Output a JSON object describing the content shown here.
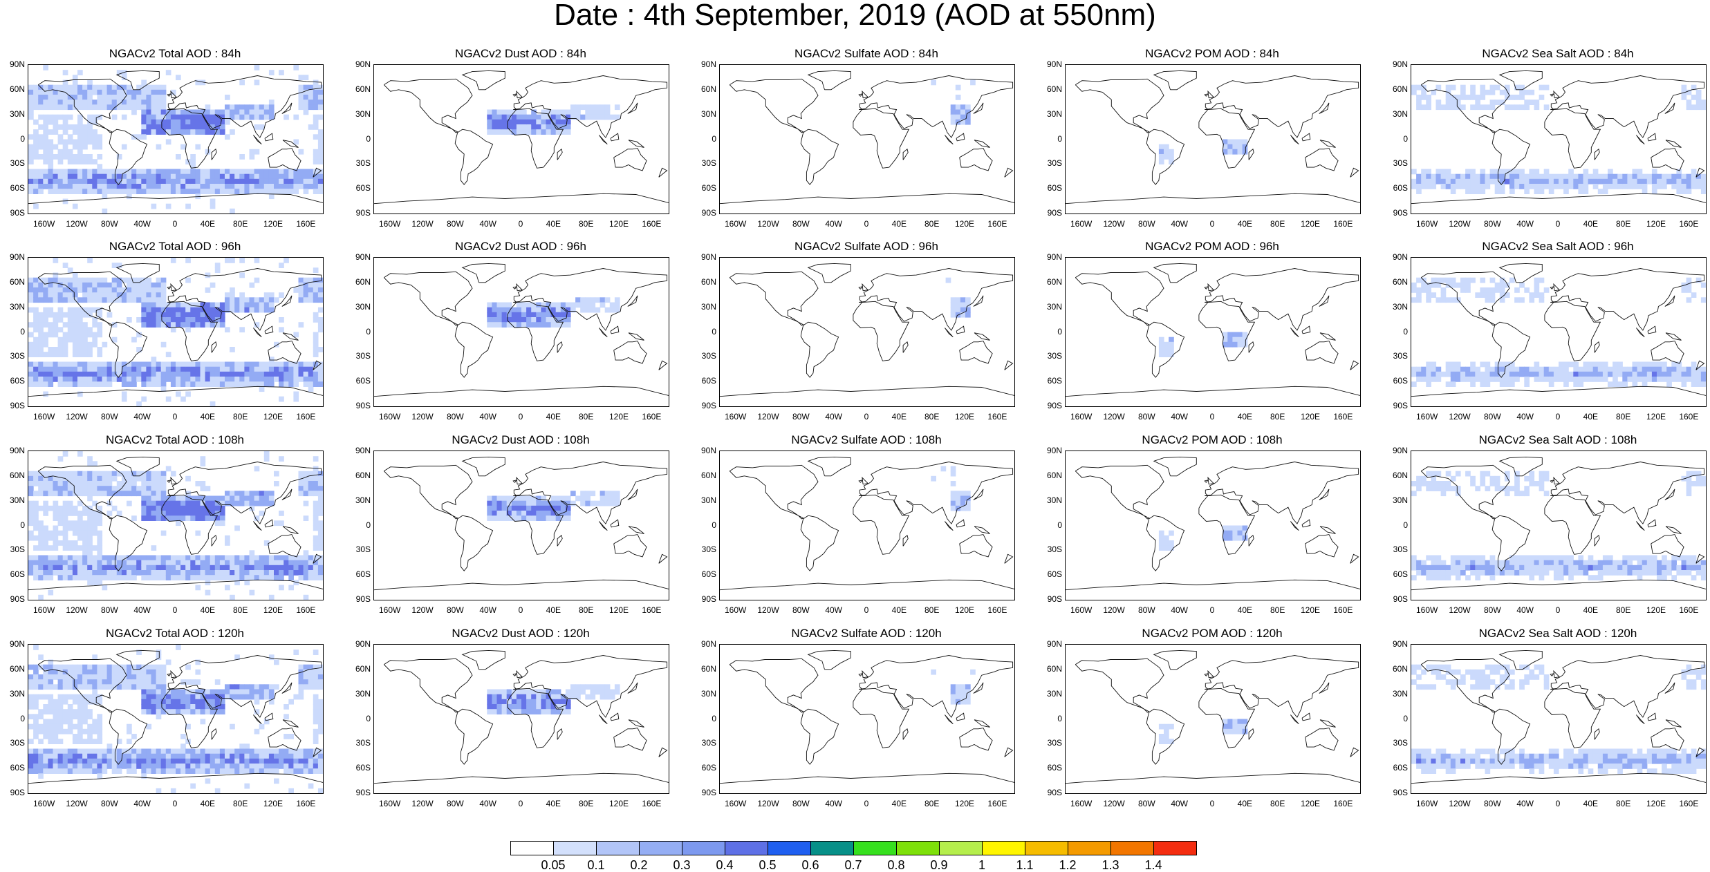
{
  "title": "Date : 4th September, 2019 (AOD at 550nm)",
  "lat_labels": [
    "90N",
    "60N",
    "30N",
    "0",
    "30S",
    "60S",
    "90S"
  ],
  "lon_labels": [
    "160W",
    "120W",
    "80W",
    "40W",
    "0",
    "40E",
    "80E",
    "120E",
    "160E"
  ],
  "species": [
    {
      "key": "total",
      "color": "#7d99ef"
    },
    {
      "key": "dust",
      "color": "#6b85ef"
    },
    {
      "key": "sulfate",
      "color": "#95aef4"
    },
    {
      "key": "pom",
      "color": "#95aef4"
    },
    {
      "key": "seasalt",
      "color": "#8ea6f3"
    }
  ],
  "panels": [
    [
      "NGACv2 Total AOD : 84h",
      "NGACv2 Dust AOD : 84h",
      "NGACv2 Sulfate AOD : 84h",
      "NGACv2 POM AOD : 84h",
      "NGACv2 Sea Salt AOD : 84h"
    ],
    [
      "NGACv2 Total AOD : 96h",
      "NGACv2 Dust AOD : 96h",
      "NGACv2 Sulfate AOD : 96h",
      "NGACv2 POM AOD : 96h",
      "NGACv2 Sea Salt AOD : 96h"
    ],
    [
      "NGACv2 Total AOD : 108h",
      "NGACv2 Dust AOD : 108h",
      "NGACv2 Sulfate AOD : 108h",
      "NGACv2 POM AOD : 108h",
      "NGACv2 Sea Salt AOD : 108h"
    ],
    [
      "NGACv2 Total AOD : 120h",
      "NGACv2 Dust AOD : 120h",
      "NGACv2 Sulfate AOD : 120h",
      "NGACv2 POM AOD : 120h",
      "NGACv2 Sea Salt  AOD : 120h"
    ]
  ],
  "colorbar": {
    "colors": [
      "#ffffff",
      "#d3e0fc",
      "#b2c5f8",
      "#95aef4",
      "#7d99ef",
      "#5e70e6",
      "#1f5ff0",
      "#079088",
      "#36e01e",
      "#7ee00a",
      "#b5ee4c",
      "#fff500",
      "#f6bc00",
      "#f49a00",
      "#f27600",
      "#f42d10"
    ],
    "labels": [
      "0.05",
      "0.1",
      "0.2",
      "0.3",
      "0.4",
      "0.5",
      "0.6",
      "0.7",
      "0.8",
      "0.9",
      "1",
      "1.1",
      "1.2",
      "1.3",
      "1.4"
    ]
  }
}
